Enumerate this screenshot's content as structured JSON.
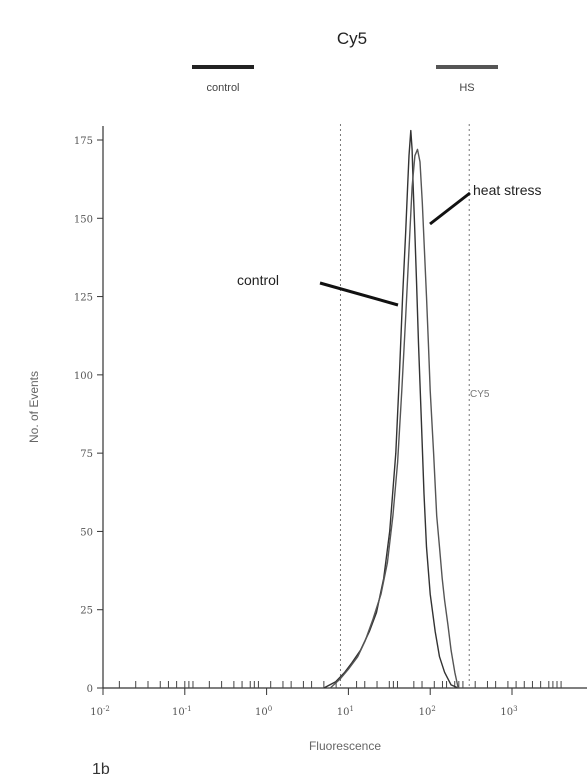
{
  "chart_data": {
    "type": "line",
    "title": "Cy5",
    "xlabel": "Fluorescence",
    "ylabel": "No. of Events",
    "x_scale": "log",
    "xlim": [
      0.01,
      10000
    ],
    "ylim": [
      0,
      175
    ],
    "x_ticks": [
      0.01,
      0.1,
      1,
      10,
      100,
      1000
    ],
    "x_tick_labels": [
      {
        "base": "10",
        "exp": "-2"
      },
      {
        "base": "10",
        "exp": "-1"
      },
      {
        "base": "10",
        "exp": "0"
      },
      {
        "base": "10",
        "exp": "1"
      },
      {
        "base": "10",
        "exp": "2"
      },
      {
        "base": "10",
        "exp": "3"
      }
    ],
    "y_ticks": [
      0,
      25,
      50,
      75,
      100,
      125,
      150,
      175
    ],
    "legend": [
      {
        "label": "control",
        "color": "#222222"
      },
      {
        "label": "HS",
        "color": "#555555"
      }
    ],
    "annotations": [
      {
        "text": "control"
      },
      {
        "text": "heat stress"
      }
    ],
    "gate_label": "CY5",
    "gates_x": [
      8,
      300
    ],
    "panel_label": "1b",
    "series": [
      {
        "color": "#333333",
        "x": [
          5,
          7,
          9,
          11,
          14,
          18,
          22,
          27,
          32,
          38,
          42,
          46,
          50,
          53,
          55,
          58,
          60,
          62,
          65,
          68,
          72,
          78,
          84,
          90,
          100,
          115,
          130,
          150,
          180,
          220
        ],
        "y": [
          0,
          2,
          5,
          8,
          12,
          18,
          24,
          35,
          50,
          75,
          100,
          125,
          145,
          160,
          170,
          178,
          172,
          160,
          145,
          130,
          110,
          85,
          62,
          45,
          30,
          18,
          10,
          5,
          1,
          0
        ]
      },
      {
        "color": "#555555",
        "x": [
          6,
          8,
          10,
          13,
          16,
          20,
          25,
          30,
          35,
          40,
          45,
          50,
          55,
          60,
          65,
          70,
          75,
          80,
          85,
          90,
          95,
          100,
          110,
          120,
          130,
          140,
          150,
          165,
          180,
          200,
          220
        ],
        "y": [
          0,
          3,
          6,
          10,
          15,
          22,
          30,
          40,
          55,
          72,
          95,
          118,
          140,
          160,
          170,
          172,
          168,
          155,
          140,
          125,
          110,
          95,
          75,
          55,
          45,
          35,
          28,
          20,
          12,
          5,
          0
        ]
      }
    ]
  }
}
